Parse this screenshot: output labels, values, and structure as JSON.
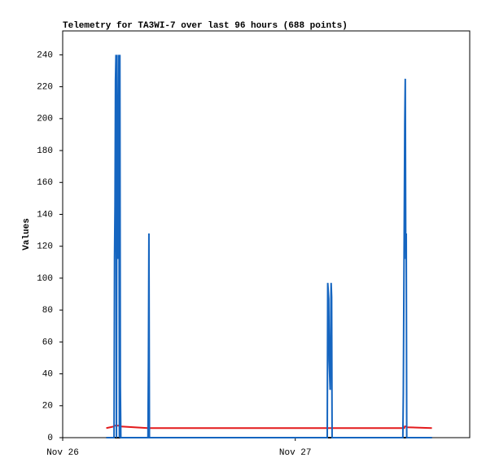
{
  "chart_data": {
    "type": "line",
    "title": "Telemetry for TA3WI-7 over last 96 hours (688 points)",
    "y_label": "Values",
    "x": [
      4.5,
      5.3,
      5.35,
      5.4,
      5.45,
      5.5,
      5.55,
      5.6,
      5.7,
      5.75,
      5.8,
      5.85,
      5.9,
      5.95,
      6.0,
      8.8,
      8.85,
      8.9,
      8.95,
      27.3,
      27.35,
      27.45,
      27.5,
      27.6,
      27.7,
      27.75,
      27.8,
      35.1,
      35.15,
      35.2,
      35.25,
      35.3,
      35.35,
      35.4,
      35.45,
      35.5,
      38.1
    ],
    "series": [
      {
        "color": "#1565c0",
        "values": [
          0,
          0,
          112,
          145,
          224,
          240,
          0,
          240,
          112,
          128,
          240,
          0,
          240,
          32,
          0,
          0,
          48,
          128,
          0,
          0,
          97,
          87,
          48,
          30,
          97,
          88,
          0,
          0,
          28,
          85,
          140,
          197,
          225,
          112,
          128,
          0,
          0
        ]
      },
      {
        "color": "#e31a1c",
        "values": [
          6,
          7,
          7.5,
          7.5,
          7.5,
          7.5,
          7.5,
          7.5,
          7.5,
          7.5,
          7.5,
          7.5,
          7.5,
          7.5,
          7,
          6,
          6,
          6,
          6,
          6,
          6,
          6,
          6,
          6,
          6,
          6,
          6,
          6,
          6,
          6,
          6,
          7,
          7,
          7,
          7,
          6.5,
          6
        ]
      },
      {
        "color": "#000000",
        "values": [
          0,
          0,
          0,
          0,
          0,
          0,
          0,
          0,
          0,
          0,
          0,
          0,
          0,
          0,
          0,
          0,
          0,
          0,
          0,
          0,
          0,
          0,
          0,
          0,
          0,
          0,
          0,
          0,
          0,
          0,
          0,
          0,
          0,
          0,
          0,
          0,
          0
        ]
      }
    ],
    "xlim": [
      0,
      42
    ],
    "xticks": [
      {
        "value": 0,
        "label": "Nov 26"
      },
      {
        "value": 24,
        "label": "Nov 27"
      }
    ],
    "ylim": [
      0,
      255
    ],
    "yticks": [
      0,
      20,
      40,
      60,
      80,
      100,
      120,
      140,
      160,
      180,
      200,
      220,
      240
    ],
    "grid": false
  }
}
